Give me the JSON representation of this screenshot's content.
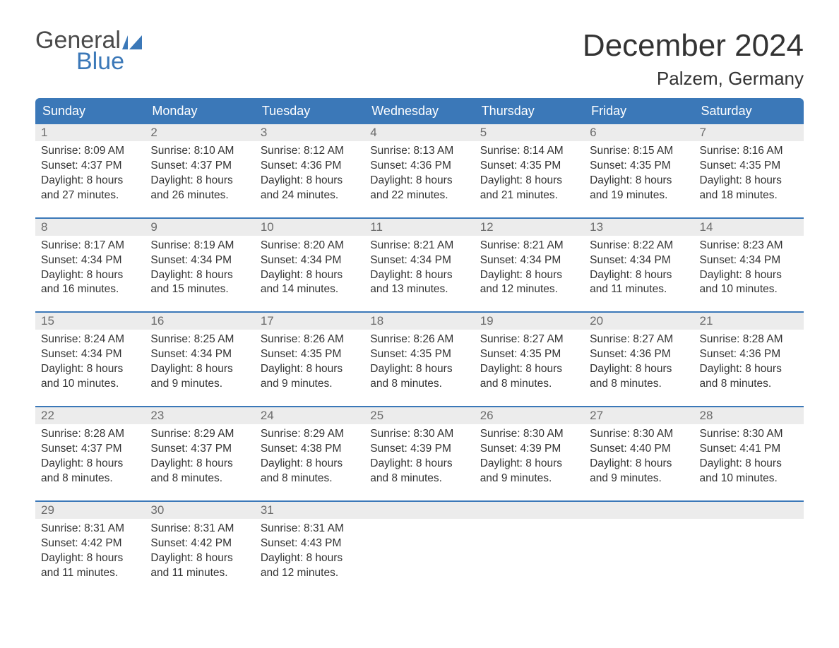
{
  "logo": {
    "word1": "General",
    "word2": "Blue",
    "icon_color": "#3b78b8",
    "text_color_top": "#4a4a4a",
    "text_color_bottom": "#3b78b8"
  },
  "title": {
    "month": "December 2024",
    "location": "Palzem, Germany"
  },
  "colors": {
    "header_bg": "#3b78b8",
    "header_text": "#ffffff",
    "daynum_bg": "#ececec",
    "daynum_text": "#6b6b6b",
    "body_text": "#333333",
    "week_divider": "#3b78b8",
    "page_bg": "#ffffff"
  },
  "columns": [
    "Sunday",
    "Monday",
    "Tuesday",
    "Wednesday",
    "Thursday",
    "Friday",
    "Saturday"
  ],
  "weeks": [
    [
      {
        "num": "1",
        "sunrise": "Sunrise: 8:09 AM",
        "sunset": "Sunset: 4:37 PM",
        "day1": "Daylight: 8 hours",
        "day2": "and 27 minutes."
      },
      {
        "num": "2",
        "sunrise": "Sunrise: 8:10 AM",
        "sunset": "Sunset: 4:37 PM",
        "day1": "Daylight: 8 hours",
        "day2": "and 26 minutes."
      },
      {
        "num": "3",
        "sunrise": "Sunrise: 8:12 AM",
        "sunset": "Sunset: 4:36 PM",
        "day1": "Daylight: 8 hours",
        "day2": "and 24 minutes."
      },
      {
        "num": "4",
        "sunrise": "Sunrise: 8:13 AM",
        "sunset": "Sunset: 4:36 PM",
        "day1": "Daylight: 8 hours",
        "day2": "and 22 minutes."
      },
      {
        "num": "5",
        "sunrise": "Sunrise: 8:14 AM",
        "sunset": "Sunset: 4:35 PM",
        "day1": "Daylight: 8 hours",
        "day2": "and 21 minutes."
      },
      {
        "num": "6",
        "sunrise": "Sunrise: 8:15 AM",
        "sunset": "Sunset: 4:35 PM",
        "day1": "Daylight: 8 hours",
        "day2": "and 19 minutes."
      },
      {
        "num": "7",
        "sunrise": "Sunrise: 8:16 AM",
        "sunset": "Sunset: 4:35 PM",
        "day1": "Daylight: 8 hours",
        "day2": "and 18 minutes."
      }
    ],
    [
      {
        "num": "8",
        "sunrise": "Sunrise: 8:17 AM",
        "sunset": "Sunset: 4:34 PM",
        "day1": "Daylight: 8 hours",
        "day2": "and 16 minutes."
      },
      {
        "num": "9",
        "sunrise": "Sunrise: 8:19 AM",
        "sunset": "Sunset: 4:34 PM",
        "day1": "Daylight: 8 hours",
        "day2": "and 15 minutes."
      },
      {
        "num": "10",
        "sunrise": "Sunrise: 8:20 AM",
        "sunset": "Sunset: 4:34 PM",
        "day1": "Daylight: 8 hours",
        "day2": "and 14 minutes."
      },
      {
        "num": "11",
        "sunrise": "Sunrise: 8:21 AM",
        "sunset": "Sunset: 4:34 PM",
        "day1": "Daylight: 8 hours",
        "day2": "and 13 minutes."
      },
      {
        "num": "12",
        "sunrise": "Sunrise: 8:21 AM",
        "sunset": "Sunset: 4:34 PM",
        "day1": "Daylight: 8 hours",
        "day2": "and 12 minutes."
      },
      {
        "num": "13",
        "sunrise": "Sunrise: 8:22 AM",
        "sunset": "Sunset: 4:34 PM",
        "day1": "Daylight: 8 hours",
        "day2": "and 11 minutes."
      },
      {
        "num": "14",
        "sunrise": "Sunrise: 8:23 AM",
        "sunset": "Sunset: 4:34 PM",
        "day1": "Daylight: 8 hours",
        "day2": "and 10 minutes."
      }
    ],
    [
      {
        "num": "15",
        "sunrise": "Sunrise: 8:24 AM",
        "sunset": "Sunset: 4:34 PM",
        "day1": "Daylight: 8 hours",
        "day2": "and 10 minutes."
      },
      {
        "num": "16",
        "sunrise": "Sunrise: 8:25 AM",
        "sunset": "Sunset: 4:34 PM",
        "day1": "Daylight: 8 hours",
        "day2": "and 9 minutes."
      },
      {
        "num": "17",
        "sunrise": "Sunrise: 8:26 AM",
        "sunset": "Sunset: 4:35 PM",
        "day1": "Daylight: 8 hours",
        "day2": "and 9 minutes."
      },
      {
        "num": "18",
        "sunrise": "Sunrise: 8:26 AM",
        "sunset": "Sunset: 4:35 PM",
        "day1": "Daylight: 8 hours",
        "day2": "and 8 minutes."
      },
      {
        "num": "19",
        "sunrise": "Sunrise: 8:27 AM",
        "sunset": "Sunset: 4:35 PM",
        "day1": "Daylight: 8 hours",
        "day2": "and 8 minutes."
      },
      {
        "num": "20",
        "sunrise": "Sunrise: 8:27 AM",
        "sunset": "Sunset: 4:36 PM",
        "day1": "Daylight: 8 hours",
        "day2": "and 8 minutes."
      },
      {
        "num": "21",
        "sunrise": "Sunrise: 8:28 AM",
        "sunset": "Sunset: 4:36 PM",
        "day1": "Daylight: 8 hours",
        "day2": "and 8 minutes."
      }
    ],
    [
      {
        "num": "22",
        "sunrise": "Sunrise: 8:28 AM",
        "sunset": "Sunset: 4:37 PM",
        "day1": "Daylight: 8 hours",
        "day2": "and 8 minutes."
      },
      {
        "num": "23",
        "sunrise": "Sunrise: 8:29 AM",
        "sunset": "Sunset: 4:37 PM",
        "day1": "Daylight: 8 hours",
        "day2": "and 8 minutes."
      },
      {
        "num": "24",
        "sunrise": "Sunrise: 8:29 AM",
        "sunset": "Sunset: 4:38 PM",
        "day1": "Daylight: 8 hours",
        "day2": "and 8 minutes."
      },
      {
        "num": "25",
        "sunrise": "Sunrise: 8:30 AM",
        "sunset": "Sunset: 4:39 PM",
        "day1": "Daylight: 8 hours",
        "day2": "and 8 minutes."
      },
      {
        "num": "26",
        "sunrise": "Sunrise: 8:30 AM",
        "sunset": "Sunset: 4:39 PM",
        "day1": "Daylight: 8 hours",
        "day2": "and 9 minutes."
      },
      {
        "num": "27",
        "sunrise": "Sunrise: 8:30 AM",
        "sunset": "Sunset: 4:40 PM",
        "day1": "Daylight: 8 hours",
        "day2": "and 9 minutes."
      },
      {
        "num": "28",
        "sunrise": "Sunrise: 8:30 AM",
        "sunset": "Sunset: 4:41 PM",
        "day1": "Daylight: 8 hours",
        "day2": "and 10 minutes."
      }
    ],
    [
      {
        "num": "29",
        "sunrise": "Sunrise: 8:31 AM",
        "sunset": "Sunset: 4:42 PM",
        "day1": "Daylight: 8 hours",
        "day2": "and 11 minutes."
      },
      {
        "num": "30",
        "sunrise": "Sunrise: 8:31 AM",
        "sunset": "Sunset: 4:42 PM",
        "day1": "Daylight: 8 hours",
        "day2": "and 11 minutes."
      },
      {
        "num": "31",
        "sunrise": "Sunrise: 8:31 AM",
        "sunset": "Sunset: 4:43 PM",
        "day1": "Daylight: 8 hours",
        "day2": "and 12 minutes."
      },
      {
        "empty": true
      },
      {
        "empty": true
      },
      {
        "empty": true
      },
      {
        "empty": true
      }
    ]
  ]
}
